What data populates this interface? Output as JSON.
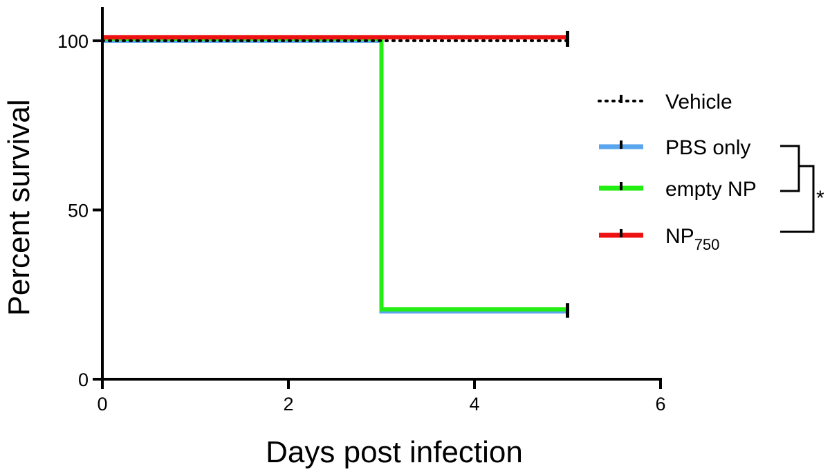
{
  "chart_data": {
    "type": "line",
    "subtype": "kaplan-meier survival",
    "title": "",
    "xlabel": "Days post infection",
    "ylabel": "Percent survival",
    "xlim": [
      0,
      6
    ],
    "ylim": [
      0,
      110
    ],
    "xticks": [
      "0",
      "2",
      "4",
      "6"
    ],
    "yticks": [
      "0",
      "50",
      "100"
    ],
    "grid": false,
    "legend_position": "right",
    "series": [
      {
        "name": "Vehicle",
        "color": "#000000",
        "style": "dotted",
        "x": [
          0,
          5
        ],
        "y": [
          100,
          100
        ],
        "censored": [
          [
            5,
            100
          ]
        ]
      },
      {
        "name": "PBS only",
        "color": "#5aa5ee",
        "style": "solid",
        "x": [
          0,
          3,
          3,
          5
        ],
        "y": [
          100,
          100,
          20,
          20
        ],
        "censored": [
          [
            5,
            20
          ]
        ]
      },
      {
        "name": "empty NP",
        "color": "#22ee11",
        "style": "solid",
        "x": [
          0,
          3,
          3,
          5
        ],
        "y": [
          100,
          100,
          20,
          20
        ],
        "censored": [
          [
            5,
            20
          ]
        ]
      },
      {
        "name": "NP",
        "name_subscript": "750",
        "color": "#ee1111",
        "style": "solid",
        "x": [
          0,
          5
        ],
        "y": [
          100,
          100
        ],
        "censored": [
          [
            5,
            100
          ]
        ]
      }
    ],
    "annotations": [
      {
        "text": "*",
        "type": "significance-bracket",
        "between": [
          "PBS only",
          "empty NP",
          "NP750"
        ]
      }
    ]
  }
}
